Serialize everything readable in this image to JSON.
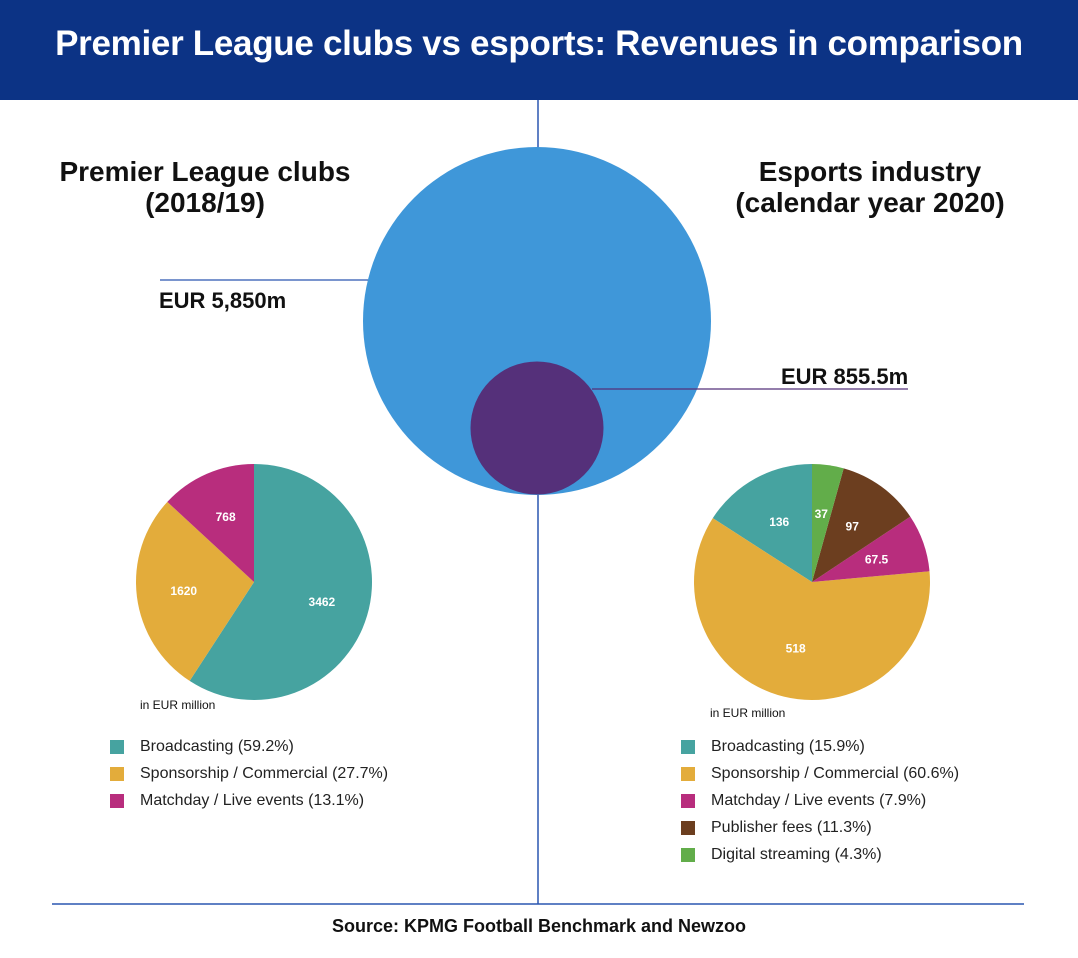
{
  "header": {
    "title": "Premier League clubs vs esports: Revenues in comparison"
  },
  "colors": {
    "header_bg": "#0c3385",
    "premier_bubble": "#3f97d9",
    "esports_bubble": "#55307a",
    "line": "#2a56b0"
  },
  "chart_data": [
    {
      "type": "bubble",
      "bubbles": [
        {
          "label": "Premier League clubs\n(2018/19)",
          "value_label": "EUR 5,850m",
          "value": 5850
        },
        {
          "label": "Esports industry\n(calendar year 2020)",
          "value_label": "EUR 855.5m",
          "value": 855.5
        }
      ]
    },
    {
      "type": "pie",
      "title": "Premier League clubs (2018/19)",
      "unit": "in EUR million",
      "slices": [
        {
          "name": "Broadcasting (59.2%)",
          "value": 3462,
          "label": "3462",
          "color": "#46a3a0"
        },
        {
          "name": "Sponsorship / Commercial (27.7%)",
          "value": 1620,
          "label": "1620",
          "color": "#e3ac3b"
        },
        {
          "name": "Matchday / Live events (13.1%)",
          "value": 768,
          "label": "768",
          "color": "#b82d7d"
        }
      ]
    },
    {
      "type": "pie",
      "title": "Esports industry (calendar year 2020)",
      "unit": "in EUR million",
      "slices": [
        {
          "name": "Broadcasting (15.9%)",
          "value": 136,
          "label": "136",
          "color": "#46a3a0"
        },
        {
          "name": "Sponsorship / Commercial (60.6%)",
          "value": 518,
          "label": "518",
          "color": "#e3ac3b"
        },
        {
          "name": "Matchday / Live events (7.9%)",
          "value": 67.5,
          "label": "67.5",
          "color": "#b82d7d"
        },
        {
          "name": "Publisher fees (11.3%)",
          "value": 97,
          "label": "97",
          "color": "#6c3e1f"
        },
        {
          "name": "Digital streaming (4.3%)",
          "value": 37,
          "label": "37",
          "color": "#62ad4a"
        }
      ]
    }
  ],
  "footer": {
    "source": "Source: KPMG Football Benchmark and Newzoo"
  }
}
